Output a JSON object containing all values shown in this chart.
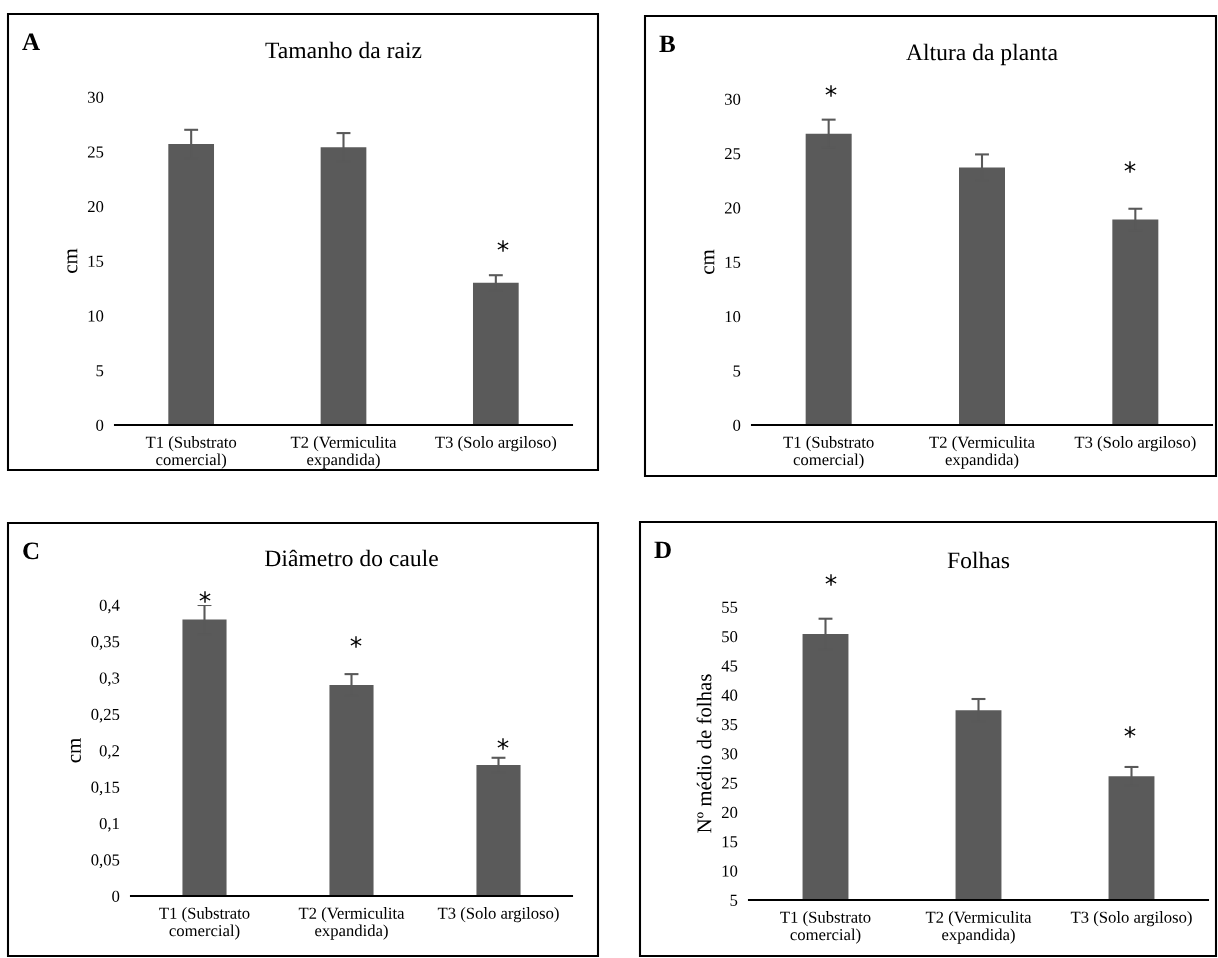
{
  "chart_data": [
    {
      "type": "bar",
      "title": "Tamanho da raiz",
      "ylabel": "cm",
      "categories": [
        "T1 (Substrato\ncomercial)",
        "T2 (Vermiculita\nexpandida)",
        "T3 (Solo argiloso)"
      ],
      "values": [
        25.7,
        25.4,
        13.0
      ],
      "errors": [
        1.3,
        1.3,
        0.7
      ],
      "color": "#5a5a5a",
      "ylim": [
        0,
        30
      ],
      "yticks": [
        0,
        5,
        10,
        15,
        20,
        25,
        30
      ],
      "grid": false,
      "legend": false,
      "annotations": [
        "A",
        "*"
      ]
    },
    {
      "type": "bar",
      "title": "Altura da planta",
      "ylabel": "cm",
      "categories": [
        "T1 (Substrato\ncomercial)",
        "T2 (Vermiculita\nexpandida)",
        "T3 (Solo argiloso)"
      ],
      "values": [
        26.8,
        23.7,
        18.9
      ],
      "errors": [
        1.3,
        1.2,
        1.0
      ],
      "color": "#5a5a5a",
      "ylim": [
        0,
        30
      ],
      "yticks": [
        0,
        5,
        10,
        15,
        20,
        25,
        30
      ],
      "grid": false,
      "legend": false,
      "annotations": [
        "B",
        "*",
        "*"
      ]
    },
    {
      "type": "bar",
      "title": "Diâmetro do caule",
      "ylabel": "cm",
      "categories": [
        "T1 (Substrato\ncomercial)",
        "T2 (Vermiculita\nexpandida)",
        "T3 (Solo argiloso)"
      ],
      "values": [
        0.38,
        0.29,
        0.18
      ],
      "errors": [
        0.02,
        0.015,
        0.01
      ],
      "color": "#5a5a5a",
      "ylim": [
        0,
        0.4
      ],
      "yticks": [
        0,
        {
          "value": 0.05,
          "label": "0,05"
        },
        {
          "value": 0.1,
          "label": "0,1"
        },
        {
          "value": 0.15,
          "label": "0,15"
        },
        {
          "value": 0.2,
          "label": "0,2"
        },
        {
          "value": 0.25,
          "label": "0,25"
        },
        {
          "value": 0.3,
          "label": "0,3"
        },
        {
          "value": 0.35,
          "label": "0,35"
        },
        {
          "value": 0.4,
          "label": "0,4"
        }
      ],
      "grid": false,
      "legend": false,
      "annotations": [
        "C",
        "*",
        "*",
        "*"
      ]
    },
    {
      "type": "bar",
      "title": "Folhas",
      "ylabel": "Nº médio de folhas",
      "categories": [
        "T1 (Substrato\ncomercial)",
        "T2 (Vermiculita\nexpandida)",
        "T3 (Solo argiloso)"
      ],
      "values": [
        50.4,
        37.4,
        26.1
      ],
      "errors": [
        2.6,
        1.9,
        1.6
      ],
      "color": "#5a5a5a",
      "ylim": [
        5,
        55
      ],
      "yticks": [
        5,
        10,
        15,
        20,
        25,
        30,
        35,
        40,
        45,
        50,
        55
      ],
      "grid": false,
      "legend": false,
      "annotations": [
        "D",
        "*",
        "*"
      ]
    }
  ]
}
